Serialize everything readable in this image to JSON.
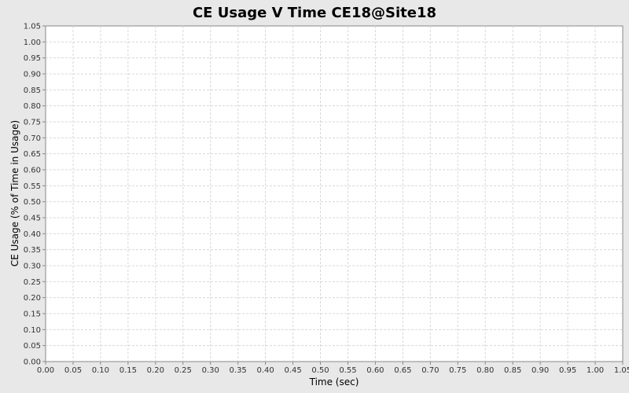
{
  "chart_data": {
    "type": "line",
    "title": "CE Usage V Time CE18@Site18",
    "xlabel": "Time (sec)",
    "ylabel": "CE Usage (% of Time in Usage)",
    "xlim": [
      0,
      1.05
    ],
    "ylim": [
      0,
      1.05
    ],
    "xticks": [
      "0.00",
      "0.05",
      "0.10",
      "0.15",
      "0.20",
      "0.25",
      "0.30",
      "0.35",
      "0.40",
      "0.45",
      "0.50",
      "0.55",
      "0.60",
      "0.65",
      "0.70",
      "0.75",
      "0.80",
      "0.85",
      "0.90",
      "0.95",
      "1.00",
      "1.05"
    ],
    "yticks": [
      "0.00",
      "0.05",
      "0.10",
      "0.15",
      "0.20",
      "0.25",
      "0.30",
      "0.35",
      "0.40",
      "0.45",
      "0.50",
      "0.55",
      "0.60",
      "0.65",
      "0.70",
      "0.75",
      "0.80",
      "0.85",
      "0.90",
      "0.95",
      "1.00",
      "1.05"
    ],
    "series": [],
    "grid": true,
    "colors": {
      "background": "#e8e8e8",
      "plot_background": "#ffffff",
      "grid": "#d8d8d8",
      "axis": "#888888"
    }
  }
}
